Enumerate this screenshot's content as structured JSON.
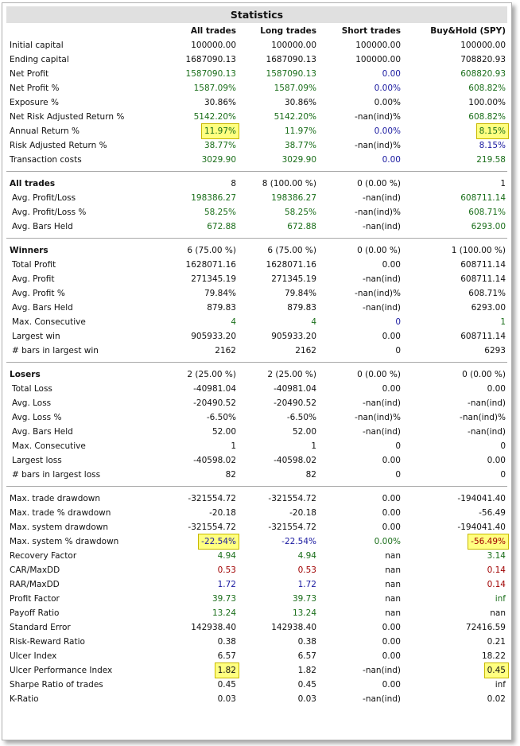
{
  "title": "Statistics",
  "columns": [
    "All trades",
    "Long trades",
    "Short trades",
    "Buy&Hold (SPY)"
  ],
  "colors": {
    "black": "#111111",
    "green": "#1a6e1a",
    "blue": "#1a1aa0",
    "red": "#a00000",
    "highlight": "#ffff80"
  },
  "rows": [
    {
      "label": "Initial capital",
      "values": [
        "100000.00",
        "100000.00",
        "100000.00",
        "100000.00"
      ],
      "colors": [
        "k",
        "k",
        "k",
        "k"
      ]
    },
    {
      "label": "Ending capital",
      "values": [
        "1687090.13",
        "1687090.13",
        "100000.00",
        "708820.93"
      ],
      "colors": [
        "k",
        "k",
        "k",
        "k"
      ]
    },
    {
      "label": "Net Profit",
      "values": [
        "1587090.13",
        "1587090.13",
        "0.00",
        "608820.93"
      ],
      "colors": [
        "g",
        "g",
        "b",
        "g"
      ]
    },
    {
      "label": "Net Profit %",
      "values": [
        "1587.09%",
        "1587.09%",
        "0.00%",
        "608.82%"
      ],
      "colors": [
        "g",
        "g",
        "b",
        "g"
      ]
    },
    {
      "label": "Exposure %",
      "values": [
        "30.86%",
        "30.86%",
        "0.00%",
        "100.00%"
      ],
      "colors": [
        "k",
        "k",
        "k",
        "k"
      ]
    },
    {
      "label": "Net Risk Adjusted Return %",
      "values": [
        "5142.20%",
        "5142.20%",
        "-nan(ind)%",
        "608.82%"
      ],
      "colors": [
        "g",
        "g",
        "k",
        "g"
      ]
    },
    {
      "label": "Annual Return %",
      "values": [
        "11.97%",
        "11.97%",
        "0.00%",
        "8.15%"
      ],
      "colors": [
        "g",
        "g",
        "b",
        "g"
      ],
      "highlight": [
        true,
        false,
        false,
        true
      ]
    },
    {
      "label": "Risk Adjusted Return %",
      "values": [
        "38.77%",
        "38.77%",
        "-nan(ind)%",
        "8.15%"
      ],
      "colors": [
        "g",
        "g",
        "k",
        "b"
      ]
    },
    {
      "label": "Transaction costs",
      "values": [
        "3029.90",
        "3029.90",
        "0.00",
        "219.58"
      ],
      "colors": [
        "g",
        "g",
        "b",
        "g"
      ]
    },
    {
      "divider": true
    },
    {
      "label": "All trades",
      "section": true,
      "values": [
        "8",
        "8 (100.00 %)",
        "0 (0.00 %)",
        "1"
      ],
      "colors": [
        "k",
        "k",
        "k",
        "k"
      ]
    },
    {
      "label": "Avg. Profit/Loss",
      "sub": true,
      "values": [
        "198386.27",
        "198386.27",
        "-nan(ind)",
        "608711.14"
      ],
      "colors": [
        "g",
        "g",
        "k",
        "g"
      ]
    },
    {
      "label": "Avg. Profit/Loss %",
      "sub": true,
      "values": [
        "58.25%",
        "58.25%",
        "-nan(ind)%",
        "608.71%"
      ],
      "colors": [
        "g",
        "g",
        "k",
        "g"
      ]
    },
    {
      "label": "Avg. Bars Held",
      "sub": true,
      "values": [
        "672.88",
        "672.88",
        "-nan(ind)",
        "6293.00"
      ],
      "colors": [
        "g",
        "g",
        "k",
        "g"
      ]
    },
    {
      "divider": true
    },
    {
      "label": "Winners",
      "section": true,
      "values": [
        "6 (75.00 %)",
        "6 (75.00 %)",
        "0 (0.00 %)",
        "1 (100.00 %)"
      ],
      "colors": [
        "k",
        "k",
        "k",
        "k"
      ]
    },
    {
      "label": "Total Profit",
      "sub": true,
      "values": [
        "1628071.16",
        "1628071.16",
        "0.00",
        "608711.14"
      ],
      "colors": [
        "k",
        "k",
        "k",
        "k"
      ]
    },
    {
      "label": "Avg. Profit",
      "sub": true,
      "values": [
        "271345.19",
        "271345.19",
        "-nan(ind)",
        "608711.14"
      ],
      "colors": [
        "k",
        "k",
        "k",
        "k"
      ]
    },
    {
      "label": "Avg. Profit %",
      "sub": true,
      "values": [
        "79.84%",
        "79.84%",
        "-nan(ind)%",
        "608.71%"
      ],
      "colors": [
        "k",
        "k",
        "k",
        "k"
      ]
    },
    {
      "label": "Avg. Bars Held",
      "sub": true,
      "values": [
        "879.83",
        "879.83",
        "-nan(ind)",
        "6293.00"
      ],
      "colors": [
        "k",
        "k",
        "k",
        "k"
      ]
    },
    {
      "label": "Max. Consecutive",
      "sub": true,
      "values": [
        "4",
        "4",
        "0",
        "1"
      ],
      "colors": [
        "g",
        "g",
        "b",
        "g"
      ]
    },
    {
      "label": "Largest win",
      "sub": true,
      "values": [
        "905933.20",
        "905933.20",
        "0.00",
        "608711.14"
      ],
      "colors": [
        "k",
        "k",
        "k",
        "k"
      ]
    },
    {
      "label": "# bars in largest win",
      "sub": true,
      "values": [
        "2162",
        "2162",
        "0",
        "6293"
      ],
      "colors": [
        "k",
        "k",
        "k",
        "k"
      ]
    },
    {
      "divider": true
    },
    {
      "label": "Losers",
      "section": true,
      "values": [
        "2 (25.00 %)",
        "2 (25.00 %)",
        "0 (0.00 %)",
        "0 (0.00 %)"
      ],
      "colors": [
        "k",
        "k",
        "k",
        "k"
      ]
    },
    {
      "label": "Total Loss",
      "sub": true,
      "values": [
        "-40981.04",
        "-40981.04",
        "0.00",
        "0.00"
      ],
      "colors": [
        "k",
        "k",
        "k",
        "k"
      ]
    },
    {
      "label": "Avg. Loss",
      "sub": true,
      "values": [
        "-20490.52",
        "-20490.52",
        "-nan(ind)",
        "-nan(ind)"
      ],
      "colors": [
        "k",
        "k",
        "k",
        "k"
      ]
    },
    {
      "label": "Avg. Loss %",
      "sub": true,
      "values": [
        "-6.50%",
        "-6.50%",
        "-nan(ind)%",
        "-nan(ind)%"
      ],
      "colors": [
        "k",
        "k",
        "k",
        "k"
      ]
    },
    {
      "label": "Avg. Bars Held",
      "sub": true,
      "values": [
        "52.00",
        "52.00",
        "-nan(ind)",
        "-nan(ind)"
      ],
      "colors": [
        "k",
        "k",
        "k",
        "k"
      ]
    },
    {
      "label": "Max. Consecutive",
      "sub": true,
      "values": [
        "1",
        "1",
        "0",
        "0"
      ],
      "colors": [
        "k",
        "k",
        "k",
        "k"
      ]
    },
    {
      "label": "Largest loss",
      "sub": true,
      "values": [
        "-40598.02",
        "-40598.02",
        "0.00",
        "0.00"
      ],
      "colors": [
        "k",
        "k",
        "k",
        "k"
      ]
    },
    {
      "label": "# bars in largest loss",
      "sub": true,
      "values": [
        "82",
        "82",
        "0",
        "0"
      ],
      "colors": [
        "k",
        "k",
        "k",
        "k"
      ]
    },
    {
      "divider": true
    },
    {
      "label": "Max. trade drawdown",
      "values": [
        "-321554.72",
        "-321554.72",
        "0.00",
        "-194041.40"
      ],
      "colors": [
        "k",
        "k",
        "k",
        "k"
      ]
    },
    {
      "label": "Max. trade % drawdown",
      "values": [
        "-20.18",
        "-20.18",
        "0.00",
        "-56.49"
      ],
      "colors": [
        "k",
        "k",
        "k",
        "k"
      ]
    },
    {
      "label": "Max. system drawdown",
      "values": [
        "-321554.72",
        "-321554.72",
        "0.00",
        "-194041.40"
      ],
      "colors": [
        "k",
        "k",
        "k",
        "k"
      ]
    },
    {
      "label": "Max. system % drawdown",
      "values": [
        "-22.54%",
        "-22.54%",
        "0.00%",
        "-56.49%"
      ],
      "colors": [
        "b",
        "b",
        "g",
        "r"
      ],
      "highlight": [
        true,
        false,
        false,
        true
      ]
    },
    {
      "label": "Recovery Factor",
      "values": [
        "4.94",
        "4.94",
        "nan",
        "3.14"
      ],
      "colors": [
        "g",
        "g",
        "k",
        "g"
      ]
    },
    {
      "label": "CAR/MaxDD",
      "values": [
        "0.53",
        "0.53",
        "nan",
        "0.14"
      ],
      "colors": [
        "r",
        "r",
        "k",
        "r"
      ]
    },
    {
      "label": "RAR/MaxDD",
      "values": [
        "1.72",
        "1.72",
        "nan",
        "0.14"
      ],
      "colors": [
        "b",
        "b",
        "k",
        "r"
      ]
    },
    {
      "label": "Profit Factor",
      "values": [
        "39.73",
        "39.73",
        "nan",
        "inf"
      ],
      "colors": [
        "g",
        "g",
        "k",
        "g"
      ]
    },
    {
      "label": "Payoff Ratio",
      "values": [
        "13.24",
        "13.24",
        "nan",
        "nan"
      ],
      "colors": [
        "g",
        "g",
        "k",
        "k"
      ]
    },
    {
      "label": "Standard Error",
      "values": [
        "142938.40",
        "142938.40",
        "0.00",
        "72416.59"
      ],
      "colors": [
        "k",
        "k",
        "k",
        "k"
      ]
    },
    {
      "label": "Risk-Reward Ratio",
      "values": [
        "0.38",
        "0.38",
        "0.00",
        "0.21"
      ],
      "colors": [
        "k",
        "k",
        "k",
        "k"
      ]
    },
    {
      "label": "Ulcer Index",
      "values": [
        "6.57",
        "6.57",
        "0.00",
        "18.22"
      ],
      "colors": [
        "k",
        "k",
        "k",
        "k"
      ]
    },
    {
      "label": "Ulcer Performance Index",
      "values": [
        "1.82",
        "1.82",
        "-nan(ind)",
        "0.45"
      ],
      "colors": [
        "k",
        "k",
        "k",
        "k"
      ],
      "highlight": [
        true,
        false,
        false,
        true
      ]
    },
    {
      "label": "Sharpe Ratio of trades",
      "values": [
        "0.45",
        "0.45",
        "0.00",
        "inf"
      ],
      "colors": [
        "k",
        "k",
        "k",
        "k"
      ]
    },
    {
      "label": "K-Ratio",
      "values": [
        "0.03",
        "0.03",
        "-nan(ind)",
        "0.02"
      ],
      "colors": [
        "k",
        "k",
        "k",
        "k"
      ]
    }
  ]
}
